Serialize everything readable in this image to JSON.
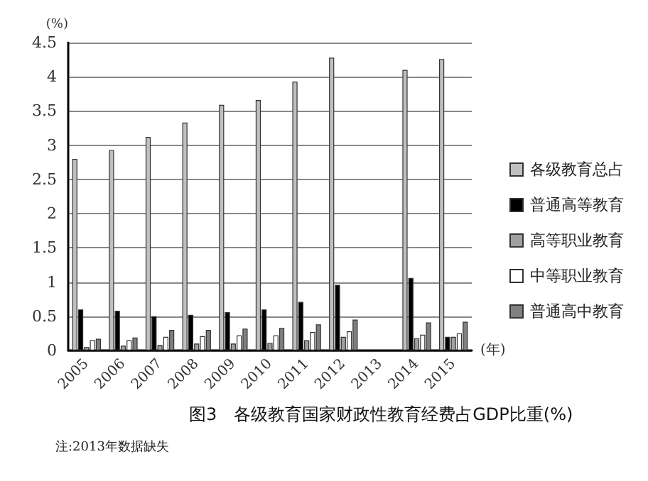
{
  "chart_data": {
    "type": "bar",
    "title": "图3　各级教育国家财政性教育经费占GDP比重(%)",
    "xlabel": "(年)",
    "ylabel": "(%)",
    "annotations": [
      "注:2013年数据缺失"
    ],
    "categories": [
      "2005",
      "2006",
      "2007",
      "2008",
      "2009",
      "2010",
      "2011",
      "2012",
      "2013",
      "2014",
      "2015"
    ],
    "series": [
      {
        "name": "各级教育总占",
        "color": "#c0c0c0",
        "values": [
          2.8,
          2.93,
          3.12,
          3.33,
          3.59,
          3.66,
          3.93,
          4.28,
          null,
          4.1,
          4.26
        ]
      },
      {
        "name": "普通高等教育",
        "color": "#000000",
        "values": [
          0.6,
          0.58,
          0.5,
          0.52,
          0.56,
          0.6,
          0.71,
          0.96,
          null,
          1.06,
          0.2
        ]
      },
      {
        "name": "高等职业教育",
        "color": "#a0a0a0",
        "values": [
          0.05,
          0.07,
          0.08,
          0.1,
          0.1,
          0.11,
          0.15,
          0.2,
          null,
          0.18,
          0.2
        ]
      },
      {
        "name": "中等职业教育",
        "color": "#ffffff",
        "values": [
          0.15,
          0.15,
          0.2,
          0.21,
          0.22,
          0.22,
          0.27,
          0.28,
          null,
          0.23,
          0.25
        ]
      },
      {
        "name": "普通高中教育",
        "color": "#808080",
        "values": [
          0.17,
          0.19,
          0.3,
          0.3,
          0.32,
          0.33,
          0.38,
          0.45,
          null,
          0.41,
          0.42
        ]
      }
    ],
    "ylim": [
      0,
      4.5
    ],
    "yticks": [
      0,
      0.5,
      1,
      1.5,
      2,
      2.5,
      3,
      3.5,
      4,
      4.5
    ],
    "grid": "y",
    "legend": "right"
  }
}
